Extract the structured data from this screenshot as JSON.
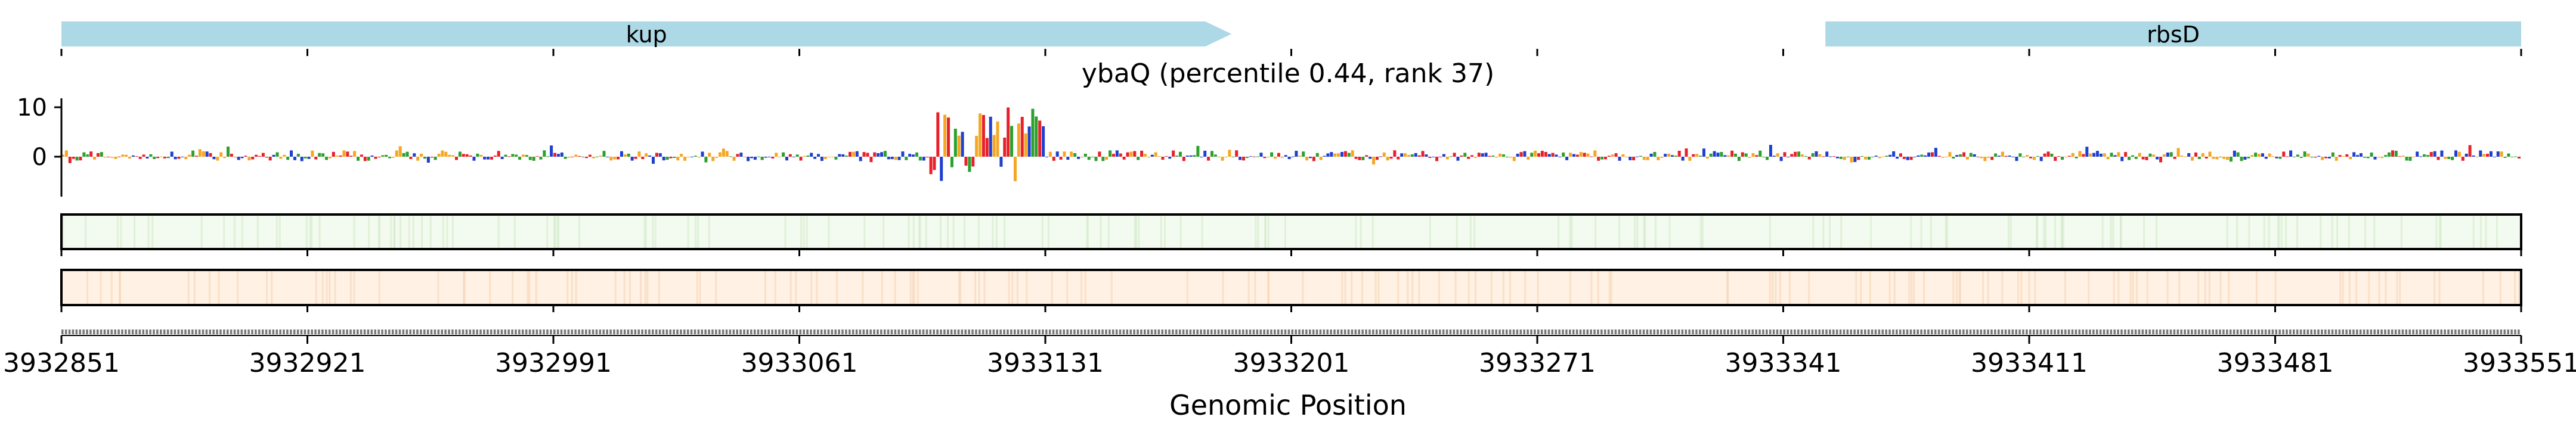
{
  "chart_data": {
    "type": "genome-track",
    "title": "ybaQ (percentile 0.44, rank 37)",
    "xlabel": "Genomic Position",
    "ylabel": "",
    "xlim": [
      3932851,
      3933551
    ],
    "x_ticks": [
      3932851,
      3932921,
      3932991,
      3933061,
      3933131,
      3933201,
      3933271,
      3933341,
      3933411,
      3933481,
      3933551
    ],
    "x_tick_labels": [
      "3932851",
      "3932921",
      "3932991",
      "3933061",
      "3933131",
      "3933201",
      "3933271",
      "3933341",
      "3933411",
      "3933481",
      "3933551"
    ],
    "y_ticks": [
      0,
      10
    ],
    "y_tick_labels": [
      "0",
      "10"
    ],
    "genes": [
      {
        "name": "kup",
        "start": 3932851,
        "end": 3933184,
        "strand": "+",
        "color": "#add8e6"
      },
      {
        "name": "rbsD",
        "start": 3933353,
        "end": 3933551,
        "strand": "-",
        "color": "#add8e6"
      }
    ],
    "logo_peak_region": [
      3933098,
      3933130
    ],
    "logo_peak_height": 10,
    "base_colors": {
      "A": "#2ca02c",
      "C": "#1f3fcf",
      "G": "#f5a623",
      "T": "#e8202a"
    },
    "heatmap_tracks": [
      {
        "name": "track-1",
        "base_color": "#f3faef",
        "highlight_color": "#cde8c4"
      },
      {
        "name": "track-2",
        "base_color": "#fff1e3",
        "highlight_color": "#f6cfb0"
      }
    ]
  }
}
